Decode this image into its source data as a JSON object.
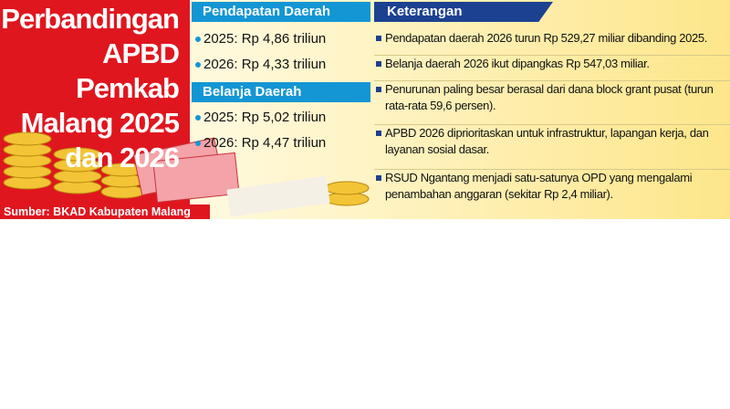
{
  "title": {
    "lines": [
      "Perbandingan",
      "APBD Pemkab",
      "Malang 2025",
      "dan 2026"
    ]
  },
  "sections": [
    {
      "heading": "Pendapatan Daerah",
      "items": [
        "2025: Rp 4,86 triliun",
        "2026: Rp 4,33 triliun"
      ]
    },
    {
      "heading": "Belanja Daerah",
      "items": [
        "2025: Rp 5,02 triliun",
        "2026: Rp 4,47 triliun"
      ]
    }
  ],
  "notes": {
    "heading": "Keterangan",
    "items": [
      "Pendapatan daerah 2026 turun Rp 529,27 miliar dibanding 2025.",
      "Belanja daerah 2026 ikut dipangkas Rp 547,03 miliar.",
      "Penurunan paling besar berasal dari dana block grant pusat (turun rata-rata 59,6 persen).",
      "APBD 2026 diprioritaskan untuk infrastruktur, lapangan kerja, dan layanan sosial dasar.",
      "RSUD Ngantang menjadi satu-satunya OPD yang mengalami penambahan anggaran (sekitar Rp 2,4 miliar)."
    ]
  },
  "source": "Sumber: BKAD Kabupaten Malang"
}
